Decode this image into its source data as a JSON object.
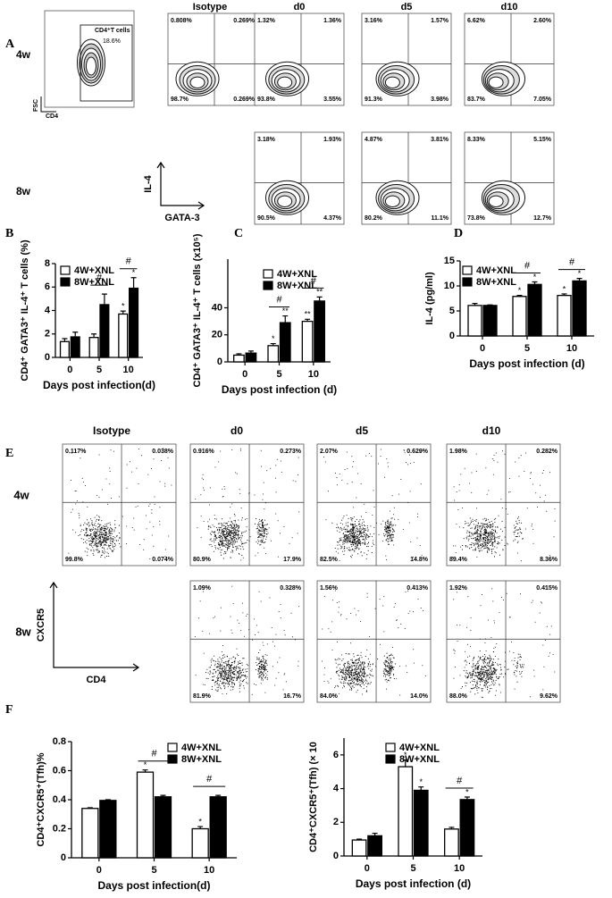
{
  "flow_a": {
    "letter": "A",
    "columns": [
      "Isotype",
      "d0",
      "d5",
      "d10"
    ],
    "gate": {
      "label": "CD4⁺T cells",
      "value": "18.6%",
      "y_axis": "FSC",
      "x_axis": "CD4"
    },
    "rows": [
      {
        "label": "4w",
        "plots": [
          [
            "0.808%",
            "0.269%",
            "98.7%",
            "0.269%"
          ],
          [
            "1.32%",
            "1.36%",
            "93.8%",
            "3.55%"
          ],
          [
            "3.16%",
            "1.57%",
            "91.3%",
            "3.98%"
          ],
          [
            "6.62%",
            "2.60%",
            "83.7%",
            "7.05%"
          ]
        ]
      },
      {
        "label": "8w",
        "plots": [
          null,
          [
            "3.18%",
            "1.93%",
            "90.5%",
            "4.37%"
          ],
          [
            "4.87%",
            "3.81%",
            "80.2%",
            "11.1%"
          ],
          [
            "8.33%",
            "5.15%",
            "73.8%",
            "12.7%"
          ]
        ]
      }
    ],
    "y_axis": "IL-4",
    "x_axis": "GATA-3"
  },
  "flow_e": {
    "letter": "E",
    "columns": [
      "Isotype",
      "d0",
      "d5",
      "d10"
    ],
    "rows": [
      {
        "label": "4w",
        "plots": [
          [
            "0.117%",
            "0.038%",
            "99.8%",
            "0.074%"
          ],
          [
            "0.916%",
            "0.273%",
            "80.9%",
            "17.9%"
          ],
          [
            "2.07%",
            "0.629%",
            "82.5%",
            "14.8%"
          ],
          [
            "1.98%",
            "0.282%",
            "89.4%",
            "8.36%"
          ]
        ]
      },
      {
        "label": "8w",
        "plots": [
          null,
          [
            "1.09%",
            "0.328%",
            "81.9%",
            "16.7%"
          ],
          [
            "1.56%",
            "0.413%",
            "84.0%",
            "14.0%"
          ],
          [
            "1.92%",
            "0.415%",
            "88.0%",
            "9.62%"
          ]
        ]
      }
    ],
    "y_axis": "CXCR5",
    "x_axis": "CD4"
  },
  "chart_data": [
    {
      "type": "bar",
      "panel": "B",
      "y_label": "CD4⁺ GATA3⁺ IL-4⁺ T cells (%)",
      "x_label": "Days post infection(d)",
      "categories": [
        "0",
        "5",
        "10"
      ],
      "ylim": [
        0,
        8
      ],
      "yticks": [
        0,
        2,
        4,
        6,
        8
      ],
      "bracket_labels": [
        null,
        "#",
        "#"
      ],
      "series": [
        {
          "name": "4W+XNL",
          "color": "#ffffff",
          "values": [
            1.35,
            1.7,
            3.7
          ],
          "errors": [
            0.25,
            0.3,
            0.25
          ],
          "marks": [
            null,
            null,
            "*"
          ]
        },
        {
          "name": "8W+XNL",
          "color": "#000000",
          "values": [
            1.75,
            4.5,
            5.9
          ],
          "errors": [
            0.4,
            0.9,
            0.9
          ],
          "marks": [
            null,
            null,
            "*"
          ]
        }
      ]
    },
    {
      "type": "bar",
      "panel": "C",
      "y_label": "CD4⁺ GATA3⁺ IL-4⁺ T cells (x10⁵)",
      "x_label": "Days post infection (d)",
      "categories": [
        "0",
        "5",
        "10"
      ],
      "ylim": [
        0,
        76
      ],
      "yticks": [
        0,
        20,
        40
      ],
      "bracket_labels": [
        null,
        "#",
        "#"
      ],
      "series": [
        {
          "name": "4W+XNL",
          "color": "#ffffff",
          "values": [
            5,
            12,
            30
          ],
          "errors": [
            1,
            1.5,
            1.5
          ],
          "marks": [
            null,
            "*",
            "**"
          ]
        },
        {
          "name": "8W+XNL",
          "color": "#000000",
          "values": [
            6.5,
            29,
            45
          ],
          "errors": [
            1.5,
            5,
            3
          ],
          "marks": [
            null,
            "**",
            "**"
          ]
        }
      ]
    },
    {
      "type": "bar",
      "panel": "D",
      "y_label": "IL-4 (pg/ml)",
      "x_label": "Days post infection (d)",
      "categories": [
        "0",
        "5",
        "10"
      ],
      "ylim": [
        0,
        15
      ],
      "yticks": [
        0,
        5,
        10,
        15
      ],
      "bracket_labels": [
        null,
        "#",
        "#"
      ],
      "series": [
        {
          "name": "4W+XNL",
          "color": "#ffffff",
          "values": [
            6.1,
            7.9,
            8.1
          ],
          "errors": [
            0.4,
            0.2,
            0.3
          ],
          "marks": [
            null,
            "*",
            "*"
          ]
        },
        {
          "name": "8W+XNL",
          "color": "#000000",
          "values": [
            6.1,
            10.3,
            11
          ],
          "errors": [
            0.1,
            0.5,
            0.5
          ],
          "marks": [
            null,
            "*",
            "*"
          ]
        }
      ]
    },
    {
      "type": "bar",
      "panel": "F",
      "y_label": "CD4⁺CXCR5⁺(Tfh)%",
      "x_label": "Days post infection(d)",
      "categories": [
        "0",
        "5",
        "10"
      ],
      "ylim": [
        0,
        0.8
      ],
      "yticks": [
        0,
        0.2,
        0.4,
        0.6,
        0.8
      ],
      "bracket_labels": [
        null,
        "#",
        "#"
      ],
      "series": [
        {
          "name": "4W+XNL",
          "color": "#ffffff",
          "values": [
            0.34,
            0.59,
            0.2
          ],
          "errors": [
            0.005,
            0.015,
            0.015
          ],
          "marks": [
            null,
            "*",
            "*"
          ]
        },
        {
          "name": "8W+XNL",
          "color": "#000000",
          "values": [
            0.395,
            0.42,
            0.42
          ],
          "errors": [
            0.005,
            0.01,
            0.01
          ],
          "marks": [
            null,
            null,
            null
          ]
        }
      ]
    },
    {
      "type": "bar",
      "y_label": "CD4⁺CXCR5⁺(Tfh) (× 10",
      "x_label": "Days post infection (d)",
      "categories": [
        "0",
        "5",
        "10"
      ],
      "ylim": [
        0,
        7
      ],
      "yticks": [
        0,
        2,
        4,
        6
      ],
      "bracket_labels": [
        null,
        null,
        "#"
      ],
      "series": [
        {
          "name": "4W+XNL",
          "color": "#ffffff",
          "values": [
            0.95,
            5.3,
            1.6
          ],
          "errors": [
            0.05,
            0.4,
            0.1
          ],
          "marks": [
            null,
            "*",
            null
          ]
        },
        {
          "name": "8W+XNL",
          "color": "#000000",
          "values": [
            1.2,
            3.9,
            3.35
          ],
          "errors": [
            0.15,
            0.2,
            0.15
          ],
          "marks": [
            null,
            "*",
            "*"
          ]
        }
      ]
    }
  ]
}
